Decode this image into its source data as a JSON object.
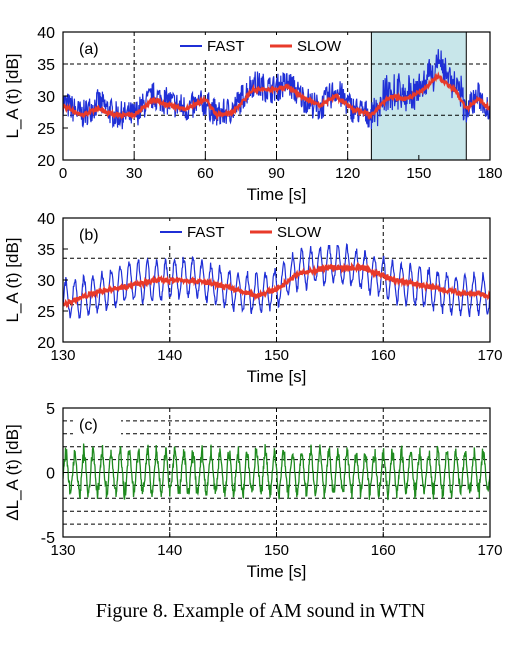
{
  "caption": "Figure 8. Example of AM sound in WTN",
  "colors": {
    "fast": "#1f2fd6",
    "slow": "#e83a2a",
    "delta": "#1f8a1f",
    "highlight": "#c8e6ea"
  },
  "chart_data": [
    {
      "type": "line",
      "panel_label": "(a)",
      "xlabel": "Time [s]",
      "ylabel": "L_A (t) [dB]",
      "xlim": [
        0,
        180
      ],
      "ylim": [
        20,
        40
      ],
      "xticks": [
        "0",
        "30",
        "60",
        "90",
        "120",
        "150",
        "180"
      ],
      "yticks": [
        "20",
        "25",
        "30",
        "35",
        "40"
      ],
      "highlight_x": [
        130,
        170
      ],
      "grid_y": [
        35,
        27
      ],
      "grid_x": [
        30,
        60,
        90,
        120
      ],
      "series": [
        {
          "name": "FAST",
          "x": [
            0,
            8,
            15,
            22,
            30,
            38,
            45,
            52,
            60,
            65,
            72,
            80,
            88,
            95,
            100,
            108,
            115,
            122,
            130,
            138,
            145,
            152,
            158,
            165,
            170,
            175,
            180
          ],
          "values": [
            29,
            27,
            29,
            27,
            27,
            30,
            29,
            28,
            29,
            27,
            28,
            32,
            31,
            32,
            30,
            28,
            31,
            28,
            27,
            31,
            30,
            31,
            35,
            32,
            28,
            30,
            28
          ]
        },
        {
          "name": "SLOW",
          "x": [
            0,
            8,
            15,
            22,
            30,
            38,
            45,
            52,
            60,
            65,
            72,
            80,
            88,
            95,
            100,
            108,
            115,
            122,
            130,
            138,
            145,
            152,
            158,
            165,
            170,
            175,
            180
          ],
          "values": [
            28.5,
            27,
            28,
            27,
            27,
            29.5,
            28.5,
            28,
            29.5,
            27,
            27.5,
            31,
            31,
            31.5,
            30,
            28.5,
            30,
            28,
            27,
            30,
            29.5,
            31,
            33,
            31,
            28,
            29.5,
            28
          ]
        }
      ],
      "fast_amp": 2.2
    },
    {
      "type": "line",
      "panel_label": "(b)",
      "xlabel": "Time [s]",
      "ylabel": "L_A (t) [dB]",
      "xlim": [
        130,
        170
      ],
      "ylim": [
        20,
        40
      ],
      "xticks": [
        "130",
        "140",
        "150",
        "160",
        "170"
      ],
      "yticks": [
        "20",
        "25",
        "30",
        "35",
        "40"
      ],
      "grid_y": [
        33.5,
        26
      ],
      "grid_x": [
        140,
        150,
        160
      ],
      "series": [
        {
          "name": "FAST",
          "x": [
            130,
            133,
            136,
            139,
            142,
            145,
            148,
            150,
            152,
            155,
            158,
            161,
            164,
            167,
            170
          ],
          "values": [
            27,
            28,
            30,
            30,
            31,
            29,
            28,
            29,
            32,
            33,
            32,
            30,
            29,
            28,
            28
          ]
        },
        {
          "name": "SLOW",
          "x": [
            130,
            133,
            136,
            139,
            142,
            145,
            148,
            150,
            152,
            155,
            158,
            161,
            164,
            167,
            170
          ],
          "values": [
            26,
            28,
            29,
            30,
            30,
            29,
            27.5,
            28.5,
            31,
            32,
            32,
            30,
            29,
            28,
            27.5
          ]
        }
      ],
      "fast_amp": 3.0,
      "am_period_s": 0.85
    },
    {
      "type": "line",
      "panel_label": "(c)",
      "xlabel": "Time [s]",
      "ylabel": "ΔL_A (t) [dB]",
      "xlim": [
        130,
        170
      ],
      "ylim": [
        -5,
        5
      ],
      "xticks": [
        "130",
        "140",
        "150",
        "160",
        "170"
      ],
      "yticks": [
        "-5",
        "0",
        "5"
      ],
      "grid_y": [
        4,
        3,
        2,
        1,
        -1,
        -2,
        -3,
        -4
      ],
      "grid_x": [
        140,
        150,
        160
      ],
      "series": [
        {
          "name": "",
          "x": [
            130,
            170
          ],
          "values": [
            0,
            0
          ],
          "am_amp": 1.6,
          "am_period_s": 0.85
        }
      ]
    }
  ],
  "legend": {
    "fast_label": "FAST",
    "slow_label": "SLOW"
  }
}
